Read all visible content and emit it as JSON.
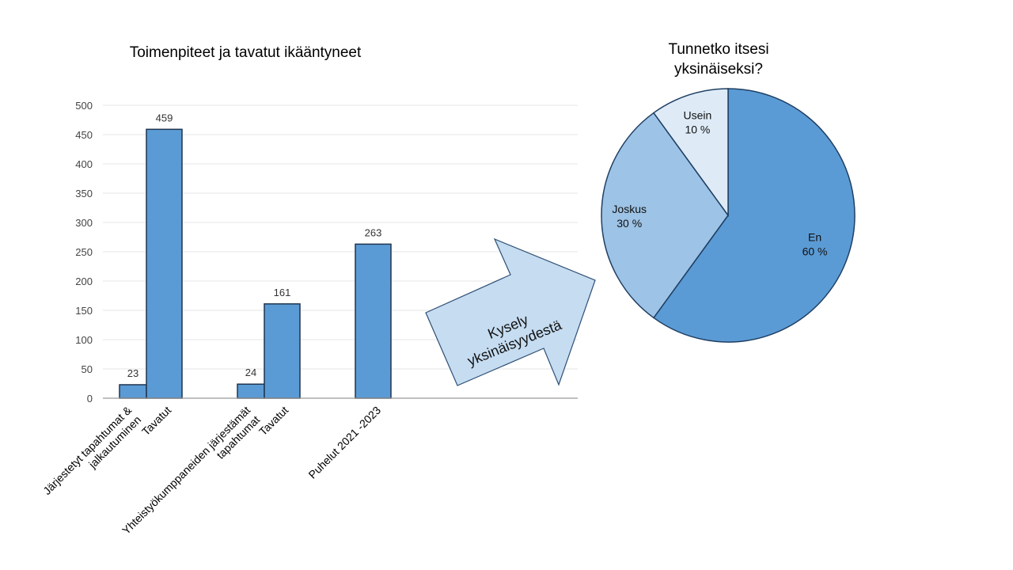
{
  "chart_data": [
    {
      "type": "bar",
      "title": "Toimenpiteet ja tavatut ikääntyneet",
      "categories": [
        [
          "Järjestetyt tapahtumat &",
          "jalkautuminen"
        ],
        [
          "Tavatut"
        ],
        [
          "Yhteistyökumppaneiden järjestämät",
          "tapahtumat"
        ],
        [
          "Tavatut"
        ],
        [
          "Puhelut 2021 -2023"
        ]
      ],
      "values": [
        23,
        459,
        24,
        161,
        263
      ],
      "ylim": [
        0,
        500
      ],
      "yticks": [
        0,
        50,
        100,
        150,
        200,
        250,
        300,
        350,
        400,
        450,
        500
      ],
      "grid": true,
      "color": "#5b9bd5"
    },
    {
      "type": "pie",
      "title": [
        "Tunnetko  itsesi",
        "yksinäiseksi?"
      ],
      "slices": [
        {
          "label": "En",
          "pct_label": "60 %",
          "value": 60,
          "color": "#5b9bd5"
        },
        {
          "label": "Joskus",
          "pct_label": "30 %",
          "value": 30,
          "color": "#9dc3e6"
        },
        {
          "label": "Usein",
          "pct_label": "10 %",
          "value": 10,
          "color": "#deebf7"
        }
      ]
    }
  ],
  "arrow": {
    "lines": [
      "Kysely",
      "yksinäisyydestä"
    ],
    "fill": "#c5dcf1",
    "stroke": "#2e4f73"
  }
}
